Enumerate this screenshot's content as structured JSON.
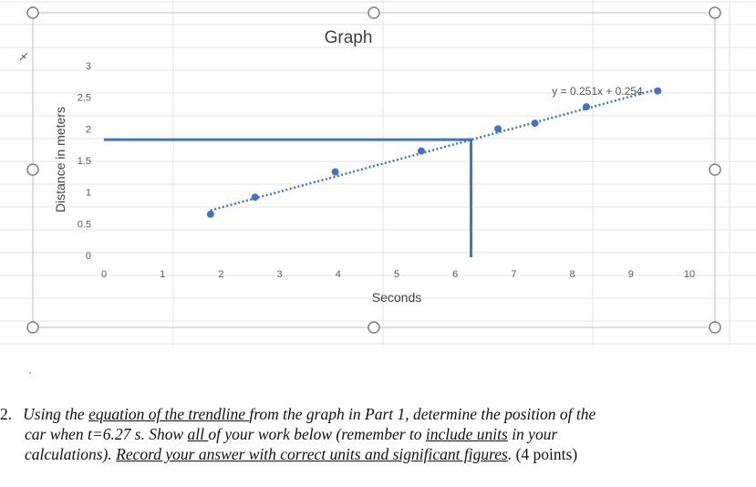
{
  "chart_data": {
    "type": "scatter",
    "title": "Graph",
    "xlabel": "Seconds",
    "ylabel": "Distance in meters",
    "xlim": [
      0,
      10
    ],
    "ylim": [
      0,
      3
    ],
    "xticks": [
      "0",
      "1",
      "2",
      "3",
      "4",
      "5",
      "6",
      "7",
      "8",
      "9",
      "10"
    ],
    "yticks": [
      "0",
      "0.5",
      "1",
      "1.5",
      "2",
      "2.5",
      "3"
    ],
    "grid": false,
    "legend": "none",
    "series": [
      {
        "points": [
          {
            "x": 1.82,
            "y": 0.65
          },
          {
            "x": 2.58,
            "y": 0.92
          },
          {
            "x": 3.95,
            "y": 1.32
          },
          {
            "x": 5.42,
            "y": 1.65
          },
          {
            "x": 6.73,
            "y": 2.0
          },
          {
            "x": 7.36,
            "y": 2.09
          },
          {
            "x": 8.24,
            "y": 2.35
          },
          {
            "x": 9.46,
            "y": 2.6
          }
        ],
        "color": "#4472C4"
      }
    ],
    "trendline": {
      "slope": 0.251,
      "intercept": 0.254,
      "label": "y = 0.251x + 0.254",
      "x_range": [
        1.82,
        9.46
      ],
      "color": "#4472C4"
    },
    "annotation_lines": {
      "horizontal_y": 1.83,
      "vertical_x": 6.27,
      "color": "#4472C4"
    }
  },
  "question": {
    "number": "2.",
    "line1_pre": "Using the ",
    "line1_link": "equation of the trendline ",
    "line1_post": "from the graph in Part 1, determine the position of the",
    "line2_pre": "car when t=6.27 s.  Show ",
    "line2_all": "all ",
    "line2_mid": "of your work below (remember to ",
    "line2_units": "include units",
    "line2_post": " in your",
    "line3_pre": "calculations). ",
    "line3_record": "Record your answer with correct units and significant figures",
    "line3_dot": ".",
    "line3_points": " (4 points)"
  }
}
